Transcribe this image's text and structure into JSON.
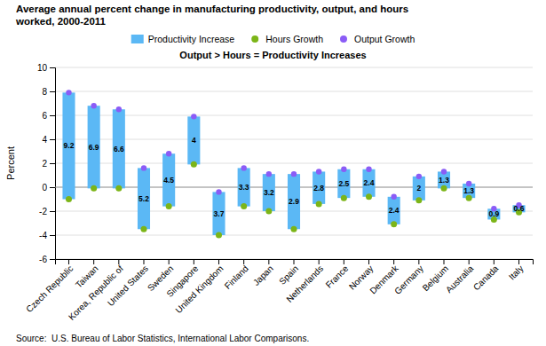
{
  "chart_data": {
    "type": "bar",
    "title": "Average annual percent change in manufacturing productivity, output, and hours\nworked, 2000-2011",
    "subtitle": "Output > Hours = Productivity Increases",
    "source": "Source:  U.S. Bureau of Labor Statistics, International Labor Comparisons.",
    "y_label": "Percent",
    "categories": [
      "Czech Republic",
      "Taiwan",
      "Korea, Republic of",
      "United States",
      "Sweden",
      "Singapore",
      "United Kingdom",
      "Finland",
      "Japan",
      "Spain",
      "Netherlands",
      "France",
      "Norway",
      "Denmark",
      "Germany",
      "Belgium",
      "Australia",
      "Canada",
      "Italy"
    ],
    "series": [
      {
        "name": "Productivity Increase",
        "type": "bar",
        "color": "#5bb8f5",
        "data_labels": true,
        "values": [
          9.2,
          6.9,
          6.6,
          5.2,
          4.5,
          4.0,
          3.7,
          3.3,
          3.2,
          2.9,
          2.8,
          2.5,
          2.4,
          2.4,
          2.0,
          1.3,
          1.3,
          0.9,
          0.6
        ]
      },
      {
        "name": "Hours Growth",
        "type": "scatter",
        "color": "#7cb518",
        "marker": "circle",
        "values": [
          -1.0,
          -0.1,
          -0.1,
          -3.5,
          -1.6,
          1.9,
          -4.0,
          -1.6,
          -2.0,
          -3.5,
          -1.4,
          -0.9,
          -0.8,
          -3.1,
          -1.1,
          -0.1,
          -0.9,
          -2.7,
          -2.1
        ]
      },
      {
        "name": "Output Growth",
        "type": "scatter",
        "color": "#8b5cf6",
        "marker": "circle",
        "values": [
          7.9,
          6.8,
          6.5,
          1.6,
          2.8,
          5.9,
          -0.4,
          1.6,
          1.1,
          1.1,
          1.3,
          1.5,
          1.5,
          -0.8,
          0.9,
          1.3,
          0.3,
          -1.8,
          -1.5
        ]
      }
    ],
    "ylim": [
      -6,
      10
    ],
    "yticks": [
      -6,
      -4,
      -2,
      0,
      2,
      4,
      6,
      8,
      10
    ],
    "grid": true,
    "legend": "top"
  }
}
